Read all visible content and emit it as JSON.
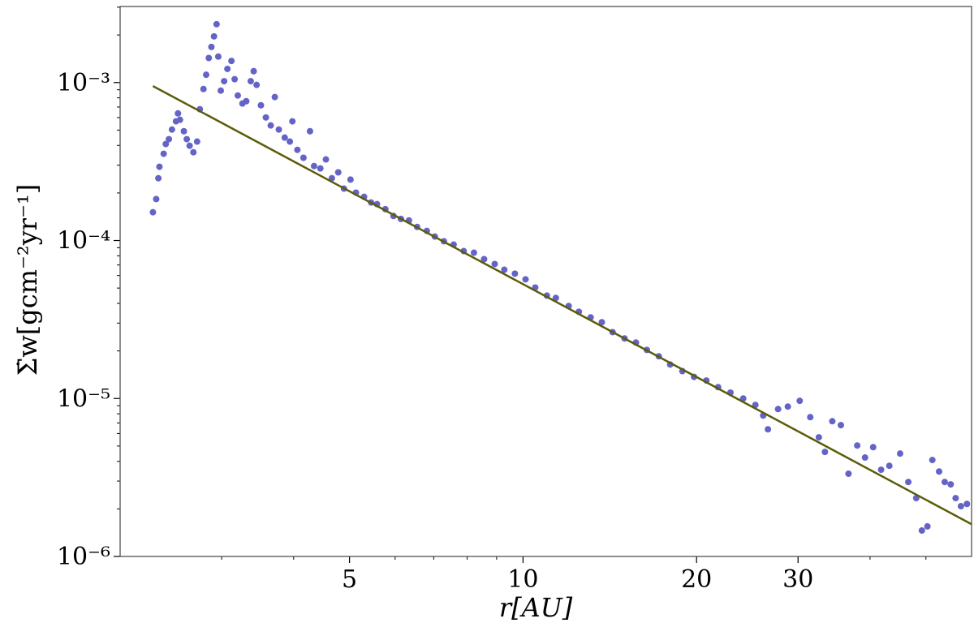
{
  "chart_data": {
    "type": "scatter",
    "x_label": "r[AU]",
    "y_label": "Σ̇w[gcm⁻²yr⁻¹]",
    "xscale": "log",
    "yscale": "log",
    "xlim": [
      2,
      60
    ],
    "ylim": [
      1e-06,
      0.00303
    ],
    "xticks": [
      5,
      10,
      20,
      30
    ],
    "xminorticks": [
      3,
      4,
      6,
      7,
      8,
      9,
      40,
      50
    ],
    "yticks": [
      {
        "value": 1e-06,
        "label": "10⁻⁶"
      },
      {
        "value": 1e-05,
        "label": "10⁻⁵"
      },
      {
        "value": 0.0001,
        "label": "10⁻⁴"
      },
      {
        "value": 0.001,
        "label": "10⁻³"
      }
    ],
    "yminorticks": [
      2e-06,
      3e-06,
      4e-06,
      5e-06,
      6e-06,
      7e-06,
      8e-06,
      9e-06,
      2e-05,
      3e-05,
      4e-05,
      5e-05,
      6e-05,
      7e-05,
      8e-05,
      9e-05,
      0.0002,
      0.0003,
      0.0004,
      0.0005,
      0.0006,
      0.0007,
      0.0008,
      0.0009,
      0.002,
      0.003
    ],
    "series": [
      {
        "type": "scatter",
        "color": "#6464c8",
        "x": [
          2.28,
          2.31,
          2.33,
          2.34,
          2.38,
          2.4,
          2.43,
          2.46,
          2.5,
          2.52,
          2.54,
          2.58,
          2.61,
          2.64,
          2.68,
          2.72,
          2.75,
          2.79,
          2.82,
          2.85,
          2.88,
          2.91,
          2.94,
          2.96,
          2.99,
          3.03,
          3.07,
          3.12,
          3.16,
          3.2,
          3.26,
          3.31,
          3.37,
          3.41,
          3.45,
          3.51,
          3.58,
          3.65,
          3.71,
          3.77,
          3.86,
          3.94,
          3.98,
          4.06,
          4.16,
          4.27,
          4.34,
          4.45,
          4.55,
          4.66,
          4.78,
          4.89,
          5.02,
          5.13,
          5.3,
          5.45,
          5.58,
          5.77,
          5.96,
          6.14,
          6.34,
          6.55,
          6.81,
          7.03,
          7.29,
          7.58,
          7.89,
          8.22,
          8.56,
          8.93,
          9.28,
          9.68,
          10.1,
          10.5,
          11.0,
          11.4,
          12.0,
          12.5,
          13.1,
          13.7,
          14.3,
          15.0,
          15.7,
          16.4,
          17.2,
          18.0,
          18.9,
          19.8,
          20.8,
          21.8,
          22.9,
          24.1,
          25.3,
          26.1,
          26.6,
          27.7,
          28.8,
          30.2,
          31.5,
          32.6,
          33.4,
          34.4,
          35.6,
          36.7,
          38.0,
          39.2,
          40.5,
          41.8,
          43.2,
          45.1,
          46.6,
          48.1,
          49.2,
          50.3,
          51.3,
          52.7,
          53.9,
          55.2,
          56.3,
          57.5,
          58.9
        ],
        "values": [
          0.000151,
          0.000183,
          0.000248,
          0.000293,
          0.000354,
          0.000408,
          0.000438,
          0.000504,
          0.000568,
          0.000638,
          0.000581,
          0.000492,
          0.000438,
          0.000398,
          0.000362,
          0.000423,
          0.000678,
          0.00091,
          0.00112,
          0.00143,
          0.00168,
          0.00196,
          0.00234,
          0.00146,
          0.000889,
          0.00102,
          0.00122,
          0.00137,
          0.00105,
          0.000828,
          0.000736,
          0.000762,
          0.00102,
          0.00118,
          0.000966,
          0.000718,
          0.000601,
          0.000535,
          0.000809,
          0.000504,
          0.000448,
          0.000423,
          0.000568,
          0.000375,
          0.000334,
          0.000492,
          0.000296,
          0.000286,
          0.000326,
          0.000248,
          0.00027,
          0.000213,
          0.000243,
          0.000201,
          0.000189,
          0.000174,
          0.00017,
          0.000158,
          0.000143,
          0.000137,
          0.000134,
          0.000122,
          0.000115,
          0.000106,
          9.89e-05,
          9.42e-05,
          8.57e-05,
          8.37e-05,
          7.62e-05,
          7.1e-05,
          6.53e-05,
          6.17e-05,
          5.68e-05,
          5.04e-05,
          4.48e-05,
          4.33e-05,
          3.85e-05,
          3.54e-05,
          3.26e-05,
          3.04e-05,
          2.63e-05,
          2.4e-05,
          2.26e-05,
          2.03e-05,
          1.85e-05,
          1.64e-05,
          1.49e-05,
          1.37e-05,
          1.3e-05,
          1.18e-05,
          1.09e-05,
          1e-05,
          9.1e-06,
          7.8e-06,
          6.38e-06,
          8.57e-06,
          8.89e-06,
          9.66e-06,
          7.62e-06,
          5.68e-06,
          4.59e-06,
          7.18e-06,
          6.78e-06,
          3.34e-06,
          5.04e-06,
          4.23e-06,
          4.92e-06,
          3.54e-06,
          3.75e-06,
          4.48e-06,
          2.96e-06,
          2.34e-06,
          1.46e-06,
          1.55e-06,
          4.08e-06,
          3.45e-06,
          2.96e-06,
          2.86e-06,
          2.34e-06,
          2.08e-06,
          2.15e-06
        ]
      },
      {
        "type": "line",
        "color": "#5c5c0a",
        "x": [
          2.28,
          60
        ],
        "values": [
          0.00095,
          1.6e-06
        ]
      }
    ]
  }
}
